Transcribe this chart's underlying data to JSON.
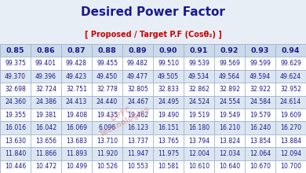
{
  "title": "Desired Power Factor",
  "subtitle": "[ Proposed / Target P.F (Cosθ₂) ]",
  "col_headers": [
    "0.85",
    "0.86",
    "0.87",
    "0.88",
    "0.89",
    "0.90",
    "0.91",
    "0.92",
    "0.93",
    "0.94"
  ],
  "table_data": [
    [
      "99.375",
      "99.401",
      "99.428",
      "99.455",
      "99.482",
      "99.510",
      "99.539",
      "99.569",
      "99.599",
      "99.629"
    ],
    [
      "49.370",
      "49.396",
      "49.423",
      "49.450",
      "49.477",
      "49.505",
      "49.534",
      "49.564",
      "49.594",
      "49.624"
    ],
    [
      "32.698",
      "32.724",
      "32.751",
      "32.778",
      "32.805",
      "32.833",
      "32.862",
      "32.892",
      "32.922",
      "32.952"
    ],
    [
      "24.360",
      "24.386",
      "24.413",
      "24.440",
      "24.467",
      "24.495",
      "24.524",
      "24.554",
      "24.584",
      "24.614"
    ],
    [
      "19.355",
      "19.381",
      "19.408",
      "19.435",
      "19.462",
      "19.490",
      "19.519",
      "19.549",
      "19.579",
      "19.609"
    ],
    [
      "16.016",
      "16.042",
      "16.069",
      "6.096",
      "16.123",
      "16.151",
      "16.180",
      "16.210",
      "16.240",
      "16.270"
    ],
    [
      "13.630",
      "13.656",
      "13.683",
      "13.710",
      "13.737",
      "13.765",
      "13.794",
      "13.824",
      "13.854",
      "13.884"
    ],
    [
      "11.840",
      "11.866",
      "11.893",
      "11.920",
      "11.947",
      "11.975",
      "12.004",
      "12.034",
      "12.064",
      "12.094"
    ],
    [
      "10.446",
      "10.472",
      "10.499",
      "10.526",
      "10.553",
      "10.581",
      "10.610",
      "10.640",
      "10.670",
      "10.700"
    ]
  ],
  "title_color": "#1a1a8c",
  "subtitle_color": "#cc0000",
  "header_text_color": "#1a1a8c",
  "cell_text_color": "#1a1a8c",
  "header_bg_color": "#ccd9e8",
  "odd_row_color": "#ffffff",
  "even_row_color": "#dce6f1",
  "border_color": "#8faacc",
  "background_color": "#b0b8c8",
  "title_fontsize": 11,
  "subtitle_fontsize": 7.0,
  "header_fontsize": 6.8,
  "cell_fontsize": 5.6,
  "fig_width": 3.9,
  "fig_height": 2.2,
  "dpi": 100
}
